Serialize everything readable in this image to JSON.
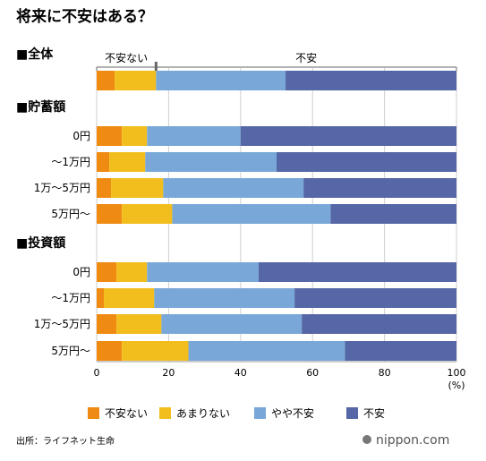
{
  "chart_data": {
    "type": "bar",
    "stacked": true,
    "orientation": "horizontal",
    "title": "将来に不安はある？",
    "source": "出所：ライフネット生命",
    "logo": "nippon.com",
    "unit_label": "(%)",
    "xlim": [
      0,
      100
    ],
    "xticks": [
      0,
      20,
      40,
      60,
      80,
      100
    ],
    "annotations": [
      "不安ない",
      "不安"
    ],
    "series": [
      {
        "name": "不安ない",
        "color": "#ef8a12"
      },
      {
        "name": "あまりない",
        "color": "#f2be1e"
      },
      {
        "name": "やや不安",
        "color": "#79a8d8"
      },
      {
        "name": "不安",
        "color": "#5567a6"
      }
    ],
    "groups": [
      {
        "label": "■全体",
        "rows": [
          {
            "label": "",
            "values": [
              5.0,
              11.5,
              36.0,
              47.5
            ]
          }
        ]
      },
      {
        "label": "■貯蓄額",
        "rows": [
          {
            "label": "0円",
            "values": [
              7.0,
              7.0,
              26.0,
              60.0
            ]
          },
          {
            "label": "〜1万円",
            "values": [
              3.5,
              10.0,
              36.5,
              50.0
            ]
          },
          {
            "label": "1万〜5万円",
            "values": [
              4.0,
              14.5,
              39.0,
              42.5
            ]
          },
          {
            "label": "5万円〜",
            "values": [
              7.0,
              14.0,
              44.0,
              35.0
            ]
          }
        ]
      },
      {
        "label": "■投資額",
        "rows": [
          {
            "label": "0円",
            "values": [
              5.5,
              8.5,
              31.0,
              55.0
            ]
          },
          {
            "label": "〜1万円",
            "values": [
              2.0,
              14.0,
              39.0,
              45.0
            ]
          },
          {
            "label": "1万〜5万円",
            "values": [
              5.5,
              12.5,
              39.0,
              43.0
            ]
          },
          {
            "label": "5万円〜",
            "values": [
              7.0,
              18.5,
              43.5,
              31.0
            ]
          }
        ]
      }
    ]
  }
}
